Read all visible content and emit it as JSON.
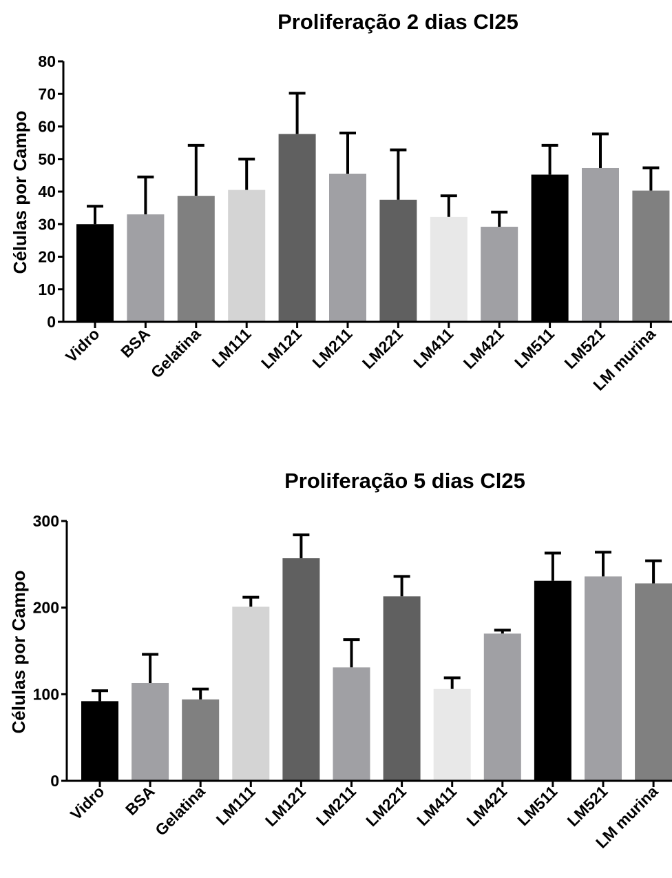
{
  "chart_data": [
    {
      "type": "bar",
      "title": "Proliferação 2 dias Cl25",
      "xlabel": "",
      "ylabel": "Células por Campo",
      "ylim": [
        0,
        80
      ],
      "yticks": [
        0,
        10,
        20,
        30,
        40,
        50,
        60,
        70,
        80
      ],
      "grid": false,
      "legend": "none",
      "categories": [
        "Vidro",
        "BSA",
        "Gelatina",
        "LM111",
        "LM121",
        "LM211",
        "LM221",
        "LM411",
        "LM421",
        "LM511",
        "LM521",
        "LM murina"
      ],
      "values": [
        30,
        33,
        38.7,
        40.5,
        57.7,
        45.5,
        37.5,
        32.2,
        29.2,
        45.2,
        47.2,
        40.3
      ],
      "errors": [
        5.5,
        11.5,
        15.5,
        9.5,
        12.5,
        12.5,
        15.3,
        6.5,
        4.5,
        9,
        10.5,
        7
      ],
      "colors": [
        "#000000",
        "#a0a0a4",
        "#808080",
        "#d4d4d4",
        "#606060",
        "#a0a0a4",
        "#606060",
        "#e8e8e8",
        "#a0a0a4",
        "#000000",
        "#a0a0a4",
        "#808080"
      ]
    },
    {
      "type": "bar",
      "title": "Proliferação 5 dias Cl25",
      "xlabel": "",
      "ylabel": "Células por Campo",
      "ylim": [
        0,
        300
      ],
      "yticks": [
        0,
        100,
        200,
        300
      ],
      "grid": false,
      "legend": "none",
      "categories": [
        "Vidro",
        "BSA",
        "Gelatina",
        "LM111",
        "LM121",
        "LM211",
        "LM221",
        "LM411",
        "LM421",
        "LM511",
        "LM521",
        "LM murina"
      ],
      "values": [
        92,
        113,
        94,
        201,
        257,
        131,
        213,
        106,
        170,
        231,
        236,
        228
      ],
      "errors": [
        12,
        33,
        12,
        11,
        27,
        32,
        23,
        13,
        4,
        32,
        28,
        26
      ],
      "colors": [
        "#000000",
        "#a0a0a4",
        "#808080",
        "#d4d4d4",
        "#606060",
        "#a0a0a4",
        "#606060",
        "#e8e8e8",
        "#a0a0a4",
        "#000000",
        "#a0a0a4",
        "#808080"
      ]
    }
  ]
}
